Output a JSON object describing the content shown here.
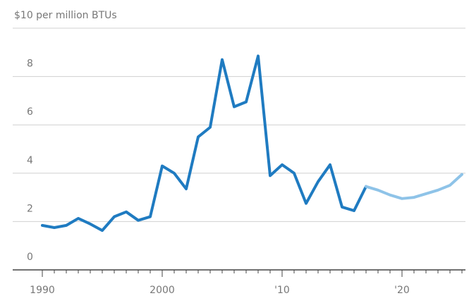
{
  "chart_data": {
    "type": "line",
    "xlim": [
      1990,
      2025
    ],
    "xticks": [
      1990,
      2000,
      {
        "value": 2010,
        "label": "'10"
      },
      {
        "value": 2020,
        "label": "'20"
      }
    ],
    "xminorticks": [
      1990,
      1991,
      1992,
      1993,
      1994,
      1995,
      1996,
      1997,
      1998,
      1999,
      2000,
      2001,
      2002,
      2003,
      2004,
      2005,
      2006,
      2007,
      2008,
      2009,
      2010,
      2011,
      2012,
      2013,
      2014,
      2015,
      2016,
      2017,
      2018,
      2019,
      2020,
      2021,
      2022,
      2023,
      2024,
      2025
    ],
    "ylim": [
      0,
      10
    ],
    "yticks": [
      0,
      2,
      4,
      6,
      8,
      {
        "value": 10,
        "label": "$10 per million BTUs"
      }
    ],
    "grid": true,
    "series": [
      {
        "color": "#1f7bc1",
        "x": [
          1990,
          1991,
          1992,
          1993,
          1994,
          1995,
          1996,
          1997,
          1998,
          1999,
          2000,
          2001,
          2002,
          2003,
          2004,
          2005,
          2006,
          2007,
          2008,
          2009,
          2010,
          2011,
          2012,
          2013,
          2014,
          2015,
          2016,
          2017
        ],
        "values": [
          1.84,
          1.75,
          1.84,
          2.13,
          1.9,
          1.63,
          2.2,
          2.4,
          2.05,
          2.2,
          4.3,
          4.0,
          3.35,
          5.5,
          5.9,
          8.7,
          6.75,
          6.95,
          8.85,
          3.9,
          4.35,
          4.0,
          2.75,
          3.65,
          4.35,
          2.6,
          2.45,
          3.45
        ]
      },
      {
        "color": "#8ec3e8",
        "x": [
          2017,
          2018,
          2019,
          2020,
          2021,
          2022,
          2023,
          2024,
          2025
        ],
        "values": [
          3.45,
          3.3,
          3.1,
          2.95,
          3.0,
          3.15,
          3.3,
          3.5,
          3.95
        ]
      }
    ]
  }
}
